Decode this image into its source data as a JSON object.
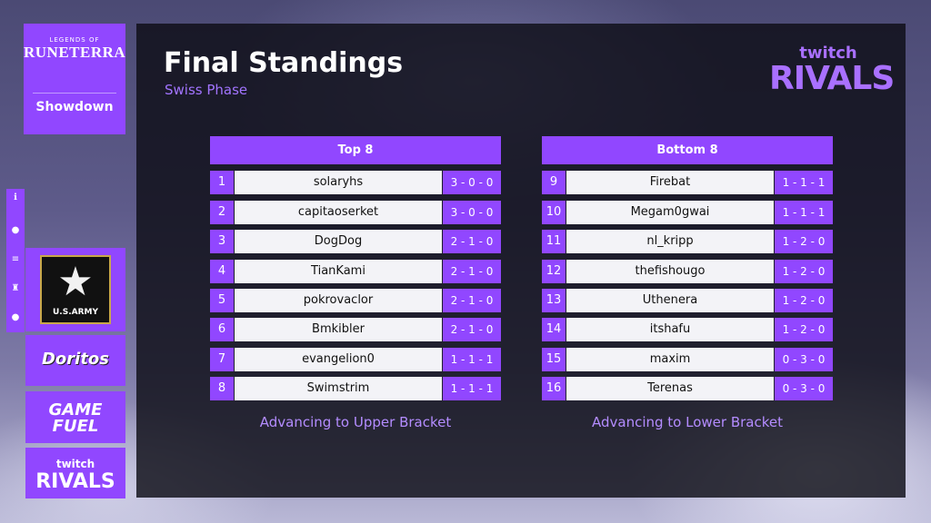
{
  "branding": {
    "game_small": "LEGENDS OF",
    "game_title": "RUNETERRA",
    "event": "Showdown"
  },
  "side_icons": [
    "info-icon",
    "users-icon",
    "list-icon",
    "trophy-icon",
    "user-icon"
  ],
  "sponsors": {
    "army": "U.S.ARMY",
    "doritos": "Doritos",
    "gamefuel": "GAME FUEL",
    "twitch_small": "twitch",
    "rivals_small": "RIVALS"
  },
  "header": {
    "title": "Final Standings",
    "subtitle": "Swiss Phase",
    "twitch": "twitch",
    "rivals": "RIVALS"
  },
  "top": {
    "heading": "Top 8",
    "caption": "Advancing to Upper Bracket",
    "rows": [
      {
        "rank": "1",
        "name": "solaryhs",
        "record": "3 - 0 - 0"
      },
      {
        "rank": "2",
        "name": "capitaoserket",
        "record": "3 - 0 - 0"
      },
      {
        "rank": "3",
        "name": "DogDog",
        "record": "2 - 1 - 0"
      },
      {
        "rank": "4",
        "name": "TianKami",
        "record": "2 - 1 - 0"
      },
      {
        "rank": "5",
        "name": "pokrovaclor",
        "record": "2 - 1 - 0"
      },
      {
        "rank": "6",
        "name": "Bmkibler",
        "record": "2 - 1 - 0"
      },
      {
        "rank": "7",
        "name": "evangelion0",
        "record": "1 - 1 - 1"
      },
      {
        "rank": "8",
        "name": "Swimstrim",
        "record": "1 - 1 - 1"
      }
    ]
  },
  "bottom": {
    "heading": "Bottom 8",
    "caption": "Advancing to Lower Bracket",
    "rows": [
      {
        "rank": "9",
        "name": "Firebat",
        "record": "1 - 1 - 1"
      },
      {
        "rank": "10",
        "name": "Megam0gwai",
        "record": "1 - 1 - 1"
      },
      {
        "rank": "11",
        "name": "nl_kripp",
        "record": "1 - 2 - 0"
      },
      {
        "rank": "12",
        "name": "thefishougo",
        "record": "1 - 2 - 0"
      },
      {
        "rank": "13",
        "name": "Uthenera",
        "record": "1 - 2 - 0"
      },
      {
        "rank": "14",
        "name": "itshafu",
        "record": "1 - 2 - 0"
      },
      {
        "rank": "15",
        "name": "maxim",
        "record": "0 - 3 - 0"
      },
      {
        "rank": "16",
        "name": "Terenas",
        "record": "0 - 3 - 0"
      }
    ]
  }
}
